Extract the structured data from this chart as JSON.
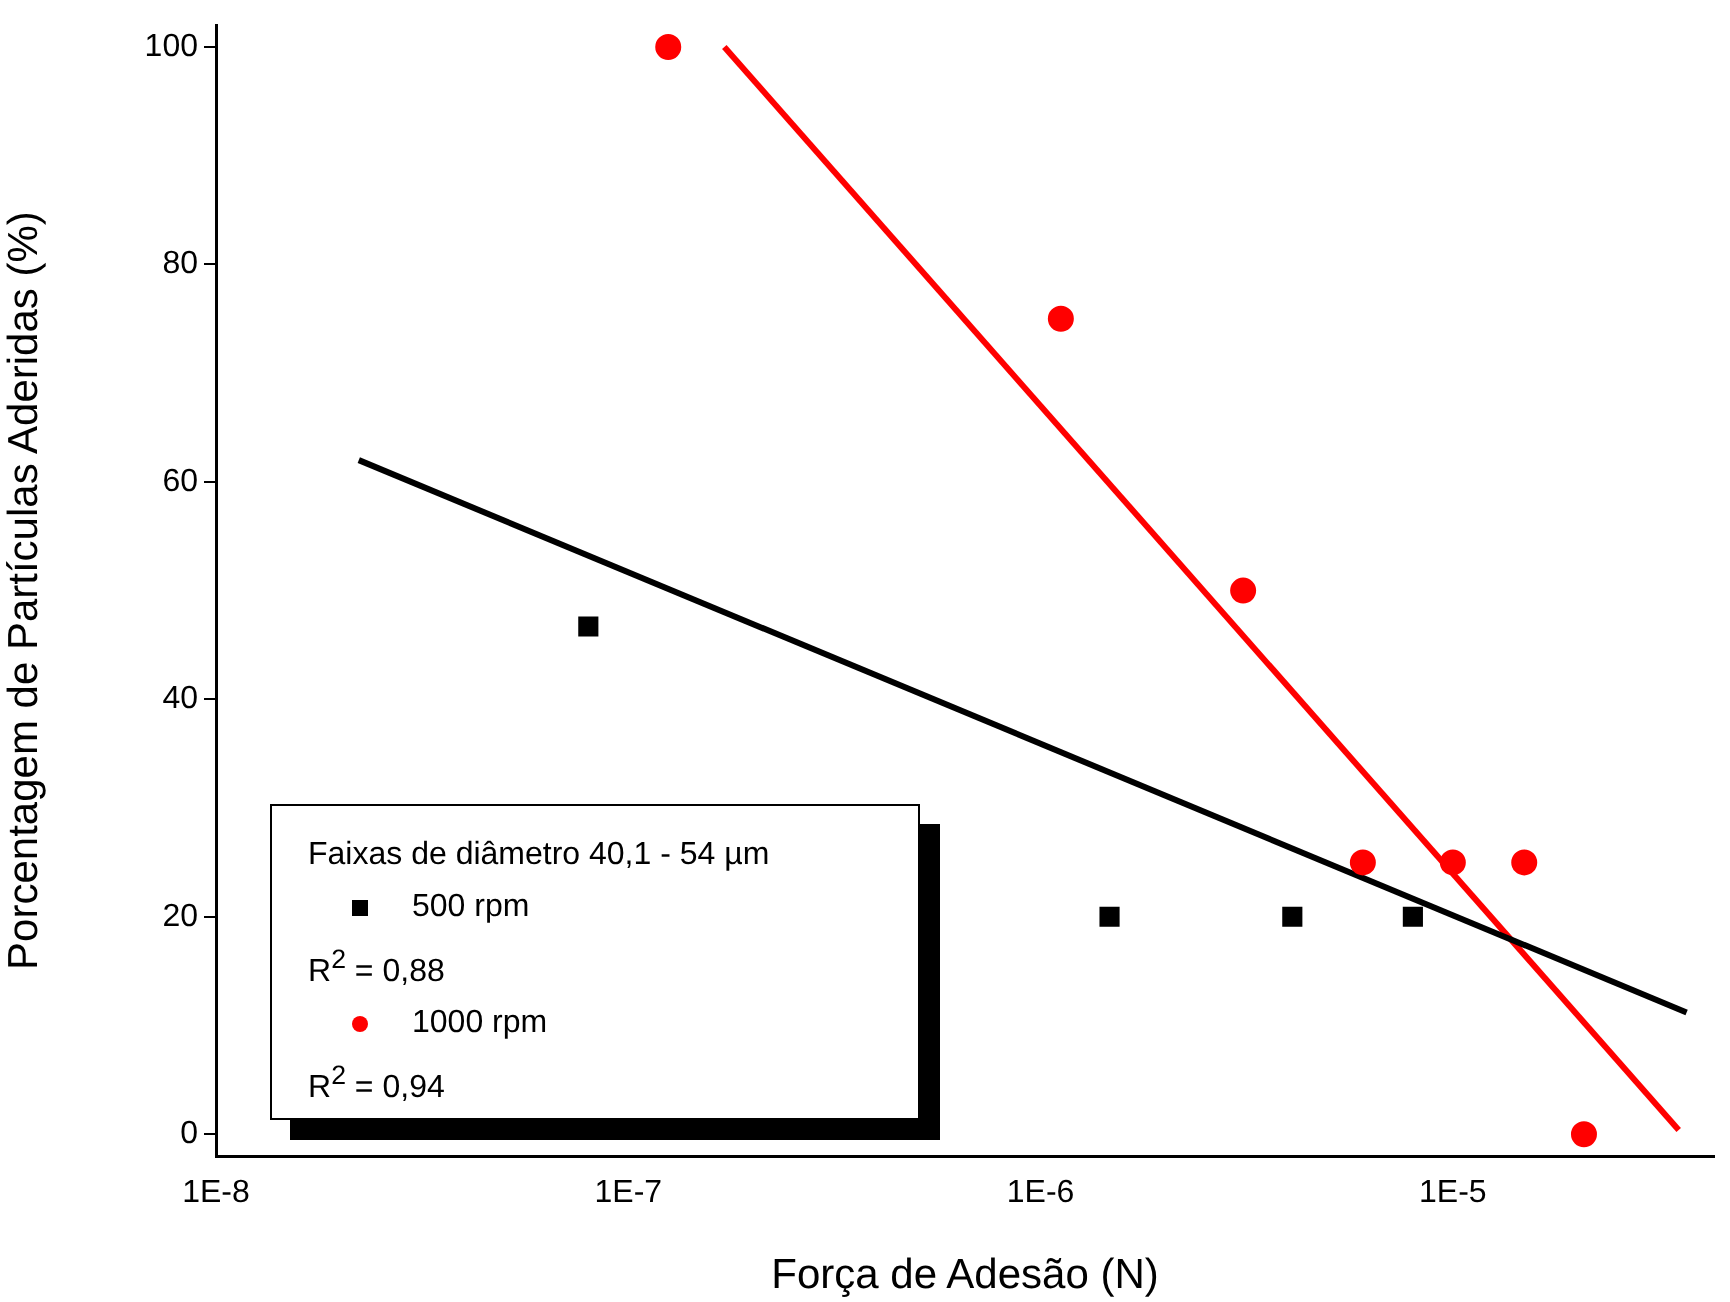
{
  "chart_data": {
    "type": "scatter",
    "xlabel": "Força de Adesão (N)",
    "ylabel": "Porcentagem de Partículas Aderidas (%)",
    "legend_title": "Faixas de diâmetro 40,1 - 54 µm",
    "log": "x",
    "xlim": [
      1e-08,
      4.3e-05
    ],
    "ylim": [
      -2,
      102
    ],
    "xticks": [
      {
        "value": 1e-08,
        "label": "1E-8"
      },
      {
        "value": 1e-07,
        "label": "1E-7"
      },
      {
        "value": 1e-06,
        "label": "1E-6"
      },
      {
        "value": 1e-05,
        "label": "1E-5"
      }
    ],
    "yticks": [
      0,
      20,
      40,
      60,
      80,
      100
    ],
    "grid": false,
    "legend": "bottom left",
    "series": [
      {
        "name": "500 rpm",
        "type": "scatter",
        "marker": "square",
        "color": "#000000",
        "x": [
          8e-08,
          1.47e-06,
          4.08e-06,
          8e-06
        ],
        "values": [
          46.7,
          20,
          20,
          20
        ]
      },
      {
        "name": "1000 rpm",
        "type": "scatter",
        "marker": "circle",
        "color": "#ff0000",
        "x": [
          1.25e-07,
          1.12e-06,
          3.1e-06,
          6.05e-06,
          1e-05,
          1.49e-05,
          2.08e-05
        ],
        "values": [
          100,
          75,
          50,
          25,
          25,
          25,
          0
        ]
      },
      {
        "type": "line",
        "marker": "none",
        "color": "#000000",
        "x": [
          2.22e-08,
          3.69e-05
        ],
        "values": [
          62,
          11.2
        ]
      },
      {
        "type": "line",
        "marker": "none",
        "color": "#ff0000",
        "x": [
          1.71e-07,
          3.53e-05
        ],
        "values": [
          100,
          0.4
        ]
      }
    ],
    "annotations": [
      "R$^{2}$ = 0,88",
      "R$^{2}$ = 0,94"
    ]
  }
}
